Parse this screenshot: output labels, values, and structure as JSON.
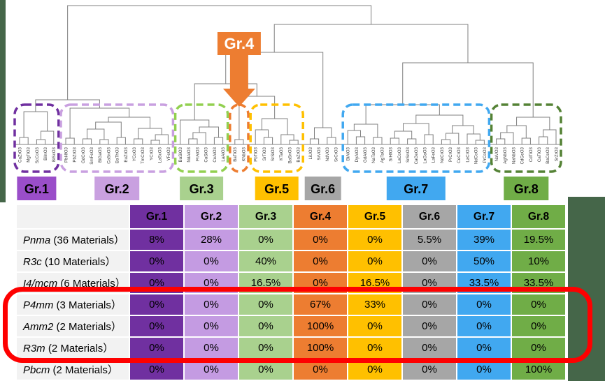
{
  "colors": {
    "slide_background_green": "#456649",
    "page_background": "#ffffff",
    "dendrogram_line": "#808080",
    "highlight_red": "#fe0000",
    "leaf_label_text": "#3f3f3f"
  },
  "chart_data": {
    "type": "dendrogram_with_table",
    "dendrogram": {
      "leaves": [
        "CaZrO3",
        "MgTiO3",
        "ScCoO3",
        "BiInO3",
        "BiScO3",
        "PbHfO3",
        "PbZrO3",
        "GdCrO3",
        "SmFeO3",
        "BiGaO3",
        "CaSnO3",
        "BaThO3",
        "EuZrO3",
        "YCoO3",
        "TmCrO3",
        "YCrO3",
        "LaScO3",
        "YFeO3",
        "BaSiO3",
        "NdAlO3",
        "PrAlO3",
        "CaSiO3",
        "CeAlO3",
        "LaAlO3",
        "BaTiO3",
        "KNbO3",
        "PbTiO3",
        "SrTiO3",
        "SrSiO3",
        "KTaO3",
        "BaSnO3",
        "BaZrO3",
        "LiUO3",
        "SrVO3",
        "NdVO3",
        "SrCrO3",
        "BiAlO3",
        "DyAlO3",
        "GdAlO3",
        "NaTaO3",
        "AgTaO3",
        "SrHfO3",
        "LaCoO3",
        "SrSnO3",
        "CaGeO3",
        "LaGaO3",
        "LaFeO3",
        "NdCrO3",
        "PrCrO3",
        "CeCrO3",
        "LaCrO3",
        "NdCoO3",
        "PrCoO3",
        "NaVO3",
        "AgNbO3",
        "NaNbO3",
        "CdGeO3",
        "CdTiO3",
        "CaTiO3",
        "BaCeO3",
        "SrZrO3"
      ],
      "groups": [
        {
          "label": "Gr.1",
          "from": 0,
          "to": 4,
          "box_color": "#7030a0",
          "badge_bg": "#9a4ec9",
          "badge_w": 56,
          "has_box": true,
          "has_badge": true
        },
        {
          "label": "Gr.2",
          "from": 5,
          "to": 17,
          "box_color": "#c9a0e0",
          "badge_bg": "#c9a0e0",
          "badge_w": 64,
          "has_box": true,
          "has_badge": true
        },
        {
          "label": "Gr.3",
          "from": 18,
          "to": 23,
          "box_color": "#92d050",
          "badge_bg": "#a9d18e",
          "badge_w": 62,
          "has_box": true,
          "has_badge": true
        },
        {
          "label": "Gr.4",
          "from": 24,
          "to": 25,
          "box_color": "#ed7d31",
          "badge_bg": null,
          "badge_w": 0,
          "has_box": true,
          "has_badge": false
        },
        {
          "label": "Gr.5",
          "from": 26,
          "to": 31,
          "box_color": "#ffc000",
          "badge_bg": "#ffc000",
          "badge_w": 62,
          "has_box": true,
          "has_badge": true
        },
        {
          "label": "Gr.6",
          "from": 32,
          "to": 35,
          "box_color": null,
          "badge_bg": "#a6a6a6",
          "badge_w": 52,
          "has_box": false,
          "has_badge": true
        },
        {
          "label": "Gr.7",
          "from": 36,
          "to": 52,
          "box_color": "#41a8f0",
          "badge_bg": "#41a8f0",
          "badge_w": 84,
          "has_box": true,
          "has_badge": true
        },
        {
          "label": "Gr.8",
          "from": 53,
          "to": 60,
          "box_color": "#548235",
          "badge_bg": "#70ad47",
          "badge_w": 64,
          "has_box": true,
          "has_badge": true
        }
      ],
      "gr4_callout": {
        "label": "Gr.4",
        "fill": "#ed7d31",
        "text_color": "#ffffff"
      },
      "tree": [
        8,
        [
          143,
          [
            160,
            [
              197,
              0,
              1
            ],
            [
              188,
              [
                200,
                2,
                3
              ],
              4
            ]
          ],
          [
            155,
            [
              198,
              5,
              6
            ],
            [
              168,
              [
                175,
                [
                  185,
                  [
                    199,
                    7,
                    8
                  ],
                  [
                    200,
                    9,
                    10
                  ]
                ],
                [
                  197,
                  11,
                  12
                ]
              ],
              [
                184,
                [
                  199,
                  13,
                  14
                ],
                [
                  193,
                  [
                    201,
                    15,
                    16
                  ],
                  17
                ]
              ]
            ]
          ]
        ],
        [
          35,
          [
            75,
            [
              120,
              [
                172,
                18,
                [
                  182,
                  [
                    190,
                    [
                      199,
                      19,
                      20
                    ],
                    21
                  ],
                  [
                    197,
                    22,
                    23
                  ]
                ]
              ],
              [
                138,
                [
                  200,
                  24,
                  25
                ],
                [
                  170,
                  [
                    186,
                    26,
                    [
                      197,
                      27,
                      28
                    ]
                  ],
                  [
                    193,
                    29,
                    [
                      201,
                      30,
                      31
                    ]
                  ]
                ]
              ]
            ],
            [
              183,
              [
                199,
                32,
                33
              ],
              [
                197,
                34,
                35
              ]
            ]
          ],
          [
            90,
            [
              150,
              [
                178,
                [
                  187,
                  36,
                  [
                    196,
                    37,
                    38
                  ]
                ],
                [
                  197,
                  39,
                  40
                ]
              ],
              [
                165,
                [
                  177,
                  [
                    188,
                    [
                      198,
                      41,
                      42
                    ],
                    [
                      199,
                      43,
                      44
                    ]
                  ],
                  [
                    193,
                    45,
                    46
                  ]
                ],
                [
                  180,
                  [
                    191,
                    [
                      200,
                      47,
                      48
                    ],
                    49
                  ],
                  [
                    192,
                    50,
                    [
                      201,
                      51,
                      52
                    ]
                  ]
                ]
              ]
            ],
            [
              168,
              [
                180,
                [
                  190,
                  [
                    199,
                    53,
                    54
                  ],
                  55
                ],
                [
                  198,
                  56,
                  57
                ]
              ],
              [
                186,
                [
                  196,
                  58,
                  59
                ],
                60
              ]
            ]
          ]
        ]
      ]
    },
    "table": {
      "corner_label": "",
      "columns": [
        {
          "label": "Gr.1",
          "color": "#7030a0"
        },
        {
          "label": "Gr.2",
          "color": "#c49be2"
        },
        {
          "label": "Gr.3",
          "color": "#a9d18e"
        },
        {
          "label": "Gr.4",
          "color": "#ed7d31"
        },
        {
          "label": "Gr.5",
          "color": "#ffc000"
        },
        {
          "label": "Gr.6",
          "color": "#a6a6a6"
        },
        {
          "label": "Gr.7",
          "color": "#41a8f0"
        },
        {
          "label": "Gr.8",
          "color": "#70ad47"
        }
      ],
      "rows": [
        {
          "symbol": "Pnma",
          "count": " (36 Materials）",
          "values": [
            "8%",
            "28%",
            "0%",
            "0%",
            "0%",
            "5.5%",
            "39%",
            "19.5%"
          ]
        },
        {
          "symbol": "R3c",
          "count": " (10 Materials）",
          "values": [
            "0%",
            "0%",
            "40%",
            "0%",
            "0%",
            "0%",
            "50%",
            "10%"
          ]
        },
        {
          "symbol": "I4/mcm",
          "count": " (6 Materials）",
          "values": [
            "0%",
            "0%",
            "16.5%",
            "0%",
            "16.5%",
            "0%",
            "33.5%",
            "33.5%"
          ]
        },
        {
          "symbol": "P4mm",
          "count": " (3 Materials）",
          "values": [
            "0%",
            "0%",
            "0%",
            "67%",
            "33%",
            "0%",
            "0%",
            "0%"
          ]
        },
        {
          "symbol": "Amm2",
          "count": " (2 Materials）",
          "values": [
            "0%",
            "0%",
            "0%",
            "100%",
            "0%",
            "0%",
            "0%",
            "0%"
          ]
        },
        {
          "symbol": "R3m",
          "count": " (2 Materials）",
          "values": [
            "0%",
            "0%",
            "0%",
            "100%",
            "0%",
            "0%",
            "0%",
            "0%"
          ]
        },
        {
          "symbol": "Pbcm",
          "count": " (2 Materials）",
          "values": [
            "0%",
            "0%",
            "0%",
            "0%",
            "0%",
            "0%",
            "0%",
            "100%"
          ]
        }
      ],
      "highlighted_rows": [
        "P4mm",
        "Amm2",
        "R3m"
      ]
    }
  }
}
